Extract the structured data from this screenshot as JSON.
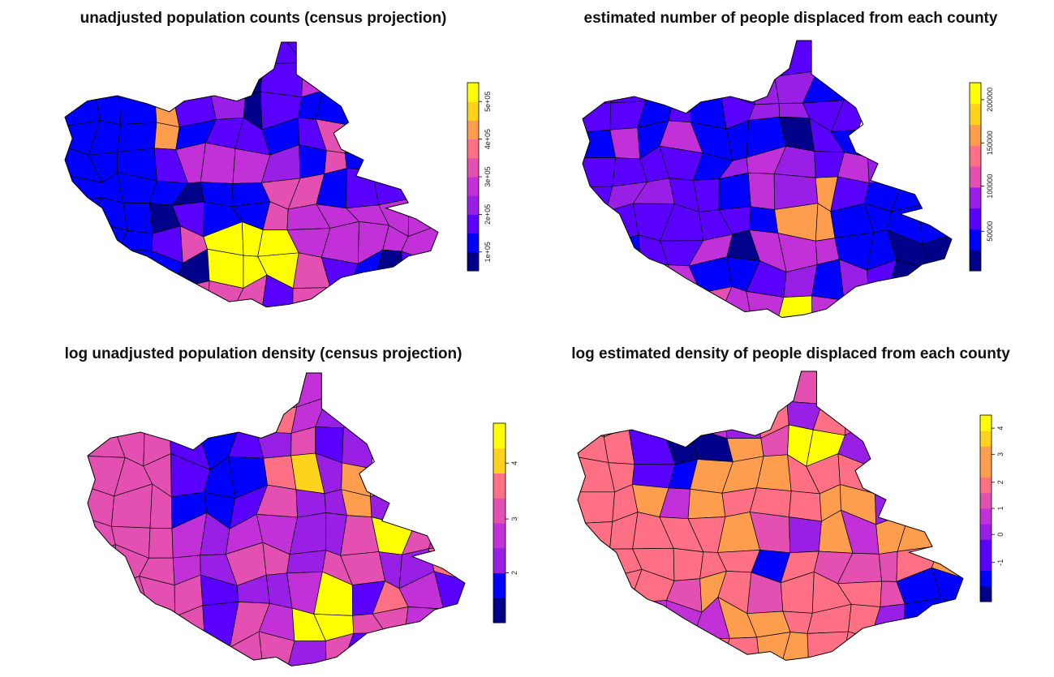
{
  "colors": {
    "scale": [
      "#00008b",
      "#0000ff",
      "#5a00ff",
      "#9a1fe6",
      "#c230d8",
      "#e44fb2",
      "#ff7085",
      "#ff9d4f",
      "#ffd21e",
      "#ffff00"
    ],
    "border": "#000000"
  },
  "panels": [
    {
      "title": "unadjusted population counts (census projection)",
      "legend": {
        "levels": 10,
        "ticks": [
          {
            "label": "1e+05",
            "pos": 0.1
          },
          {
            "label": "2e+05",
            "pos": 0.3
          },
          {
            "label": "3e+05",
            "pos": 0.5
          },
          {
            "label": "4e+05",
            "pos": 0.7
          },
          {
            "label": "5e+05",
            "pos": 0.9
          }
        ]
      }
    },
    {
      "title": "estimated number of people displaced from each county",
      "legend": {
        "levels": 9,
        "ticks": [
          {
            "label": "50000",
            "pos": 0.21
          },
          {
            "label": "100000",
            "pos": 0.45
          },
          {
            "label": "150000",
            "pos": 0.68
          },
          {
            "label": "200000",
            "pos": 0.91
          }
        ]
      }
    },
    {
      "title": "log unadjusted population density (census projection)",
      "legend": {
        "levels": 8,
        "ticks": [
          {
            "label": "2",
            "pos": 0.25
          },
          {
            "label": "3",
            "pos": 0.52
          },
          {
            "label": "4",
            "pos": 0.8
          }
        ]
      }
    },
    {
      "title": "log estimated density of people displaced from each county",
      "legend": {
        "levels": 12,
        "ticks": [
          {
            "label": "-1",
            "pos": 0.21
          },
          {
            "label": "0",
            "pos": 0.36
          },
          {
            "label": "1",
            "pos": 0.5
          },
          {
            "label": "2",
            "pos": 0.64
          },
          {
            "label": "3",
            "pos": 0.79
          },
          {
            "label": "4",
            "pos": 0.93
          }
        ]
      }
    }
  ]
}
